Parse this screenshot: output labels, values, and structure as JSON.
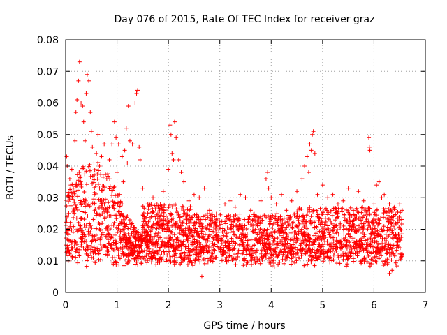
{
  "chart_data": {
    "type": "scatter",
    "title": "Day 076 of 2015, Rate Of TEC Index for receiver graz",
    "xlabel": "GPS time / hours",
    "ylabel": "ROTI / TECUs",
    "xlim": [
      0,
      7
    ],
    "ylim": [
      0,
      0.08
    ],
    "xticks": [
      "0",
      "1",
      "2",
      "3",
      "4",
      "5",
      "6",
      "7"
    ],
    "yticks": [
      "0",
      "0.01",
      "0.02",
      "0.03",
      "0.04",
      "0.05",
      "0.06",
      "0.07",
      "0.08"
    ],
    "grid": true,
    "marker": "+",
    "color": "#ff0000",
    "x_range_of_data": [
      0,
      6.55
    ],
    "series": [
      {
        "name": "ROTI",
        "points": [
          [
            0.0,
            0.015
          ],
          [
            0.02,
            0.043
          ],
          [
            0.03,
            0.04
          ],
          [
            0.05,
            0.03
          ],
          [
            0.06,
            0.025
          ],
          [
            0.08,
            0.036
          ],
          [
            0.1,
            0.034
          ],
          [
            0.12,
            0.039
          ],
          [
            0.15,
            0.033
          ],
          [
            0.18,
            0.048
          ],
          [
            0.2,
            0.057
          ],
          [
            0.22,
            0.061
          ],
          [
            0.25,
            0.067
          ],
          [
            0.27,
            0.073
          ],
          [
            0.3,
            0.06
          ],
          [
            0.33,
            0.059
          ],
          [
            0.35,
            0.054
          ],
          [
            0.38,
            0.048
          ],
          [
            0.4,
            0.063
          ],
          [
            0.42,
            0.069
          ],
          [
            0.45,
            0.067
          ],
          [
            0.48,
            0.057
          ],
          [
            0.5,
            0.051
          ],
          [
            0.52,
            0.046
          ],
          [
            0.55,
            0.041
          ],
          [
            0.6,
            0.044
          ],
          [
            0.63,
            0.05
          ],
          [
            0.66,
            0.04
          ],
          [
            0.7,
            0.043
          ],
          [
            0.75,
            0.047
          ],
          [
            0.8,
            0.036
          ],
          [
            0.85,
            0.042
          ],
          [
            0.9,
            0.047
          ],
          [
            0.95,
            0.054
          ],
          [
            0.98,
            0.049
          ],
          [
            1.0,
            0.038
          ],
          [
            1.03,
            0.047
          ],
          [
            1.05,
            0.031
          ],
          [
            1.1,
            0.043
          ],
          [
            1.12,
            0.035
          ],
          [
            1.15,
            0.045
          ],
          [
            1.18,
            0.052
          ],
          [
            1.2,
            0.041
          ],
          [
            1.22,
            0.059
          ],
          [
            1.25,
            0.048
          ],
          [
            1.3,
            0.047
          ],
          [
            1.35,
            0.06
          ],
          [
            1.38,
            0.063
          ],
          [
            1.4,
            0.064
          ],
          [
            1.43,
            0.046
          ],
          [
            1.45,
            0.042
          ],
          [
            1.5,
            0.033
          ],
          [
            1.6,
            0.028
          ],
          [
            1.7,
            0.03
          ],
          [
            1.8,
            0.027
          ],
          [
            1.9,
            0.032
          ],
          [
            2.0,
            0.039
          ],
          [
            2.03,
            0.053
          ],
          [
            2.05,
            0.05
          ],
          [
            2.07,
            0.044
          ],
          [
            2.1,
            0.042
          ],
          [
            2.12,
            0.054
          ],
          [
            2.15,
            0.049
          ],
          [
            2.2,
            0.042
          ],
          [
            2.25,
            0.038
          ],
          [
            2.3,
            0.035
          ],
          [
            2.4,
            0.029
          ],
          [
            2.5,
            0.031
          ],
          [
            2.6,
            0.03
          ],
          [
            2.65,
            0.005
          ],
          [
            2.7,
            0.033
          ],
          [
            2.8,
            0.026
          ],
          [
            2.9,
            0.024
          ],
          [
            3.0,
            0.022
          ],
          [
            3.1,
            0.028
          ],
          [
            3.2,
            0.029
          ],
          [
            3.3,
            0.027
          ],
          [
            3.4,
            0.031
          ],
          [
            3.5,
            0.03
          ],
          [
            3.6,
            0.026
          ],
          [
            3.7,
            0.024
          ],
          [
            3.8,
            0.029
          ],
          [
            3.9,
            0.036
          ],
          [
            3.93,
            0.038
          ],
          [
            3.95,
            0.033
          ],
          [
            4.0,
            0.03
          ],
          [
            4.1,
            0.028
          ],
          [
            4.2,
            0.031
          ],
          [
            4.3,
            0.026
          ],
          [
            4.4,
            0.029
          ],
          [
            4.5,
            0.032
          ],
          [
            4.6,
            0.036
          ],
          [
            4.65,
            0.04
          ],
          [
            4.7,
            0.043
          ],
          [
            4.73,
            0.038
          ],
          [
            4.75,
            0.047
          ],
          [
            4.78,
            0.045
          ],
          [
            4.8,
            0.05
          ],
          [
            4.82,
            0.051
          ],
          [
            4.85,
            0.044
          ],
          [
            4.9,
            0.031
          ],
          [
            5.0,
            0.034
          ],
          [
            5.1,
            0.03
          ],
          [
            5.2,
            0.031
          ],
          [
            5.3,
            0.028
          ],
          [
            5.4,
            0.029
          ],
          [
            5.5,
            0.033
          ],
          [
            5.6,
            0.026
          ],
          [
            5.7,
            0.032
          ],
          [
            5.8,
            0.029
          ],
          [
            5.9,
            0.049
          ],
          [
            5.91,
            0.046
          ],
          [
            5.92,
            0.045
          ],
          [
            6.0,
            0.028
          ],
          [
            6.05,
            0.034
          ],
          [
            6.1,
            0.035
          ],
          [
            6.15,
            0.03
          ],
          [
            6.2,
            0.031
          ],
          [
            6.3,
            0.028
          ],
          [
            6.4,
            0.027
          ],
          [
            6.5,
            0.028
          ],
          [
            6.55,
            0.026
          ],
          [
            6.3,
            0.006
          ],
          [
            6.35,
            0.007
          ]
        ]
      }
    ]
  }
}
